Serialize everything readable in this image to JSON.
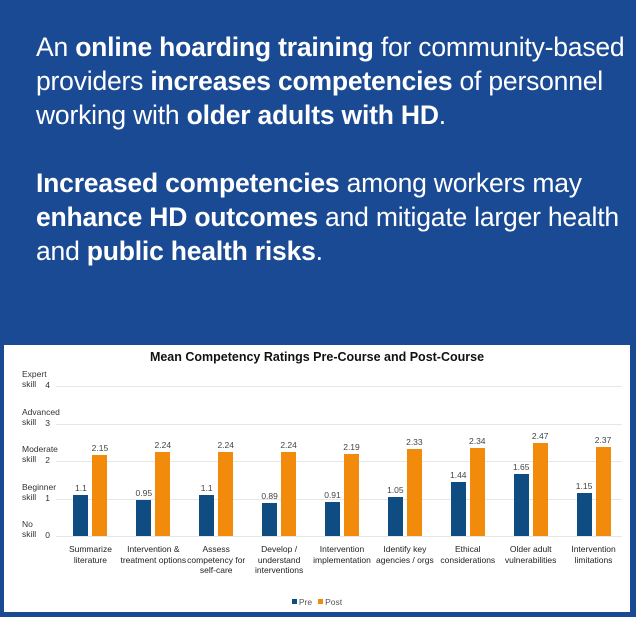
{
  "headline": {
    "p1": [
      {
        "t": "An ",
        "b": false
      },
      {
        "t": "online hoarding training",
        "b": true
      },
      {
        "t": " for community-based providers ",
        "b": false
      },
      {
        "t": "increases competencies",
        "b": true
      },
      {
        "t": " of personnel working with ",
        "b": false
      },
      {
        "t": "older adults with HD",
        "b": true
      },
      {
        "t": ".",
        "b": false
      }
    ],
    "p2": [
      {
        "t": "Increased competencies",
        "b": true
      },
      {
        "t": " among workers may ",
        "b": false
      },
      {
        "t": "enhance HD outcomes",
        "b": true
      },
      {
        "t": " and mitigate larger health and ",
        "b": false
      },
      {
        "t": "public health risks",
        "b": true
      },
      {
        "t": ".",
        "b": false
      }
    ]
  },
  "colors": {
    "background": "#1a4a93",
    "pre": "#0f4c81",
    "post": "#f28a0c"
  },
  "chart_data": {
    "type": "bar",
    "title": "Mean Competency Ratings Pre-Course and Post-Course",
    "xlabel": "",
    "ylabel": "",
    "ylim": [
      0,
      4
    ],
    "grid": true,
    "legend_position": "bottom",
    "y_ticks": [
      {
        "value": 0,
        "label": "No skill"
      },
      {
        "value": 1,
        "label": "Beginner skill"
      },
      {
        "value": 2,
        "label": "Moderate skill"
      },
      {
        "value": 3,
        "label": "Advanced skill"
      },
      {
        "value": 4,
        "label": "Expert skill"
      }
    ],
    "categories": [
      "Summarize literature",
      "Intervention & treatment options",
      "Assess competency for self-care",
      "Develop / understand interventions",
      "Intervention implementation",
      "Identify key agencies / orgs",
      "Ethical considerations",
      "Older adult vulnerabilities",
      "Intervention limitations"
    ],
    "series": [
      {
        "name": "Pre",
        "color": "#0f4c81",
        "values": [
          1.1,
          0.95,
          1.1,
          0.89,
          0.91,
          1.05,
          1.44,
          1.65,
          1.15
        ]
      },
      {
        "name": "Post",
        "color": "#f28a0c",
        "values": [
          2.15,
          2.24,
          2.24,
          2.24,
          2.19,
          2.33,
          2.34,
          2.47,
          2.37
        ]
      }
    ]
  }
}
